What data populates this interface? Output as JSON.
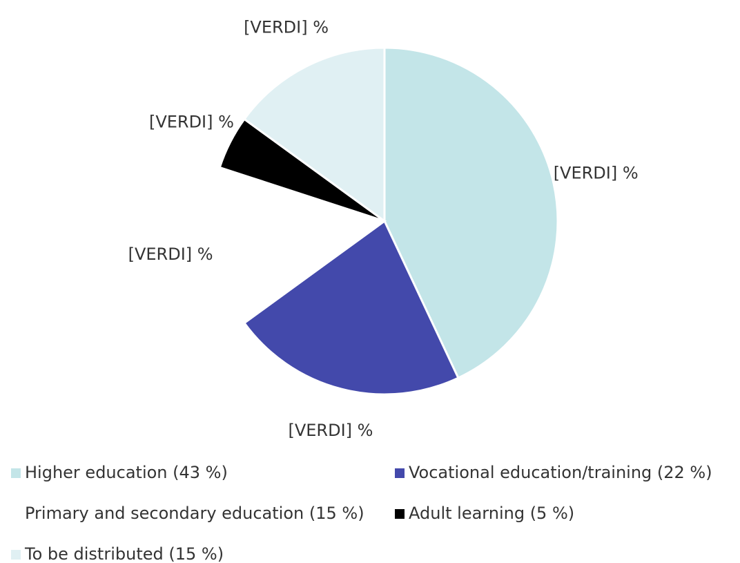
{
  "chart_data": {
    "type": "pie",
    "categories": [
      "Higher education (43 %)",
      "Vocational education/training (22 %)",
      "Primary and secondary education (15 %)",
      "Adult learning (5 %)",
      "To be distributed (15 %)"
    ],
    "values": [
      43,
      22,
      15,
      5,
      15
    ],
    "colors": [
      "#c3e5e8",
      "#4349ab",
      "#ffffff",
      "#000000",
      "#e0f0f3"
    ],
    "slice_labels": [
      "[VERDI] %",
      "[VERDI] %",
      "[VERDI] %",
      "[VERDI] %",
      "[VERDI] %"
    ]
  }
}
